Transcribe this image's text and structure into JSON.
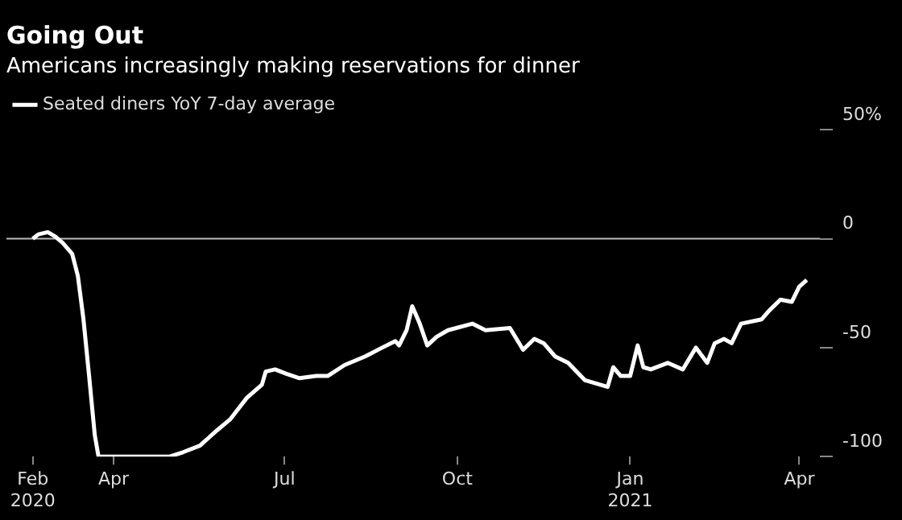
{
  "chart_data": {
    "type": "line",
    "title": "Going Out",
    "subtitle": "Americans increasingly making reservations for dinner",
    "x": [
      "2020-02-18",
      "2020-02-21",
      "2020-02-26",
      "2020-03-01",
      "2020-03-05",
      "2020-03-10",
      "2020-03-13",
      "2020-03-16",
      "2020-03-19",
      "2020-03-22",
      "2020-03-24",
      "2020-05-01",
      "2020-05-08",
      "2020-05-17",
      "2020-05-26",
      "2020-06-02",
      "2020-06-11",
      "2020-06-19",
      "2020-06-21",
      "2020-06-26",
      "2020-07-02",
      "2020-07-09",
      "2020-07-18",
      "2020-07-24",
      "2020-08-02",
      "2020-08-13",
      "2020-08-22",
      "2020-08-29",
      "2020-08-31",
      "2020-09-04",
      "2020-09-07",
      "2020-09-11",
      "2020-09-15",
      "2020-09-20",
      "2020-09-26",
      "2020-10-09",
      "2020-10-16",
      "2020-10-29",
      "2020-11-05",
      "2020-11-11",
      "2020-11-16",
      "2020-11-22",
      "2020-11-29",
      "2020-12-08",
      "2020-12-20",
      "2020-12-23",
      "2020-12-27",
      "2021-01-01",
      "2021-01-05",
      "2021-01-08",
      "2021-01-12",
      "2021-01-21",
      "2021-01-29",
      "2021-02-05",
      "2021-02-11",
      "2021-02-15",
      "2021-02-20",
      "2021-02-24",
      "2021-03-01",
      "2021-03-12",
      "2021-03-16",
      "2021-03-22",
      "2021-03-28",
      "2021-04-01",
      "2021-04-05"
    ],
    "series": [
      {
        "name": "Seated diners YoY 7-day average",
        "color": "#ffffff",
        "values": [
          0,
          2,
          3,
          1,
          -2,
          -7,
          -17,
          -37,
          -63,
          -90,
          -100,
          -100,
          -98,
          -95,
          -88,
          -83,
          -73,
          -67,
          -61,
          -60,
          -62,
          -64,
          -63,
          -63,
          -58,
          -54,
          -50,
          -47,
          -49,
          -42,
          -31,
          -39,
          -49,
          -45,
          -42,
          -39,
          -42,
          -41,
          -51,
          -46,
          -48,
          -54,
          -57,
          -65,
          -68,
          -59,
          -63,
          -63,
          -49,
          -59,
          -60,
          -57,
          -60,
          -50,
          -57,
          -48,
          -46,
          -48,
          -39,
          -37,
          -33,
          -28,
          -29,
          -22,
          -19
        ]
      }
    ],
    "xticks": [
      {
        "value": "2020-02-18",
        "label": "Feb 2020"
      },
      {
        "value": "2020-04-01",
        "label": "Apr"
      },
      {
        "value": "2020-07-01",
        "label": "Jul"
      },
      {
        "value": "2020-10-01",
        "label": "Oct"
      },
      {
        "value": "2021-01-01",
        "label": "Jan 2021"
      },
      {
        "value": "2021-04-01",
        "label": "Apr"
      }
    ],
    "xlim": [
      "2020-02-04",
      "2021-04-12"
    ],
    "ylim": [
      -100,
      50
    ],
    "yticks": [
      {
        "value": 50,
        "label": "50%"
      },
      0,
      -50,
      -100
    ],
    "ref_lines": [
      {
        "axis": "y",
        "value": 0,
        "color": "#bbbbbb"
      }
    ],
    "grid": false,
    "legend": "top left",
    "marker": "none",
    "line_style": "solid"
  }
}
